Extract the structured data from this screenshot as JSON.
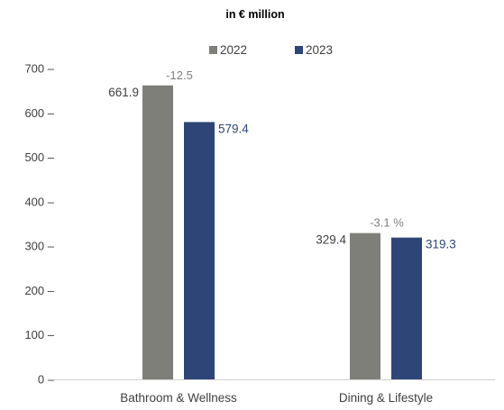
{
  "chart_data": {
    "type": "bar",
    "title": "in € million",
    "categories": [
      "Bathroom & Wellness",
      "Dining & Lifestyle"
    ],
    "series": [
      {
        "name": "2022",
        "values": [
          661.9,
          329.4
        ],
        "color": "#7f7f79"
      },
      {
        "name": "2023",
        "values": [
          579.4,
          319.3
        ],
        "color": "#2e4677"
      }
    ],
    "change_labels": [
      "-12.5",
      "-3.1 %"
    ],
    "change_color": "#7f7f7f",
    "ylim": [
      0,
      700
    ],
    "yticks": [
      0,
      100,
      200,
      300,
      400,
      500,
      600,
      700
    ],
    "ytick_labels": [
      "0 –",
      "100 –",
      "200 –",
      "300 –",
      "400 –",
      "500 –",
      "600 –",
      "700 –"
    ],
    "value_labels": {
      "2022": [
        "661.9",
        "329.4"
      ],
      "2023": [
        "579.4",
        "319.3"
      ]
    },
    "legend_position": "top",
    "grid": false
  }
}
